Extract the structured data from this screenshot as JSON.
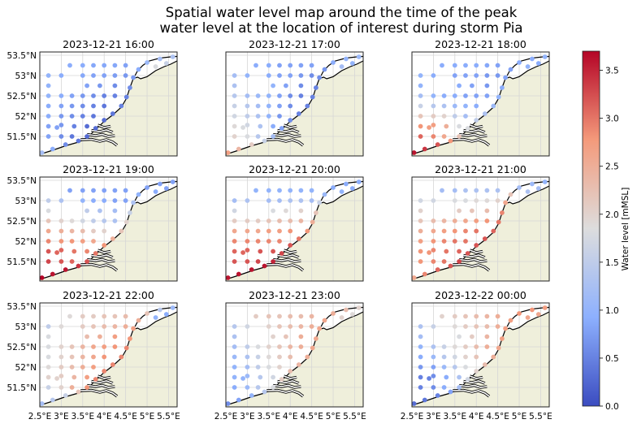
{
  "chart_data": {
    "type": "scatter",
    "title": [
      "Spatial water level map around the time of the peak",
      "water level at the location of interest during storm Pia"
    ],
    "extent": {
      "lon": [
        2.5,
        5.7
      ],
      "lat": [
        51.02,
        53.58
      ]
    },
    "grid": true,
    "land_color": "#efefdb",
    "x_ticks": [
      2.5,
      3,
      3.5,
      4,
      4.5,
      5,
      5.5
    ],
    "x_tick_labels": [
      "2.5°E",
      "3°E",
      "3.5°E",
      "4°E",
      "4.5°E",
      "5°E",
      "5.5°E"
    ],
    "y_ticks": [
      51.5,
      52,
      52.5,
      53,
      53.5
    ],
    "y_tick_labels": [
      "51.5°N",
      "52°N",
      "52.5°N",
      "53°N",
      "53.5°N"
    ],
    "colorbar": {
      "label": "Water level [mMSL]",
      "colormap": "coolwarm",
      "range": [
        0,
        3.7
      ],
      "ticks": [
        0,
        0.5,
        1,
        1.5,
        2,
        2.5,
        3,
        3.5
      ],
      "tick_labels": [
        "0.0",
        "0.5",
        "1.0",
        "1.5",
        "2.0",
        "2.5",
        "3.0",
        "3.5"
      ]
    },
    "stations": [
      [
        3.2,
        53.25
      ],
      [
        3.5,
        53.25
      ],
      [
        3.75,
        53.25
      ],
      [
        4.0,
        53.25
      ],
      [
        4.25,
        53.25
      ],
      [
        4.5,
        53.25
      ],
      [
        2.7,
        53.0
      ],
      [
        3.0,
        53.0
      ],
      [
        3.5,
        53.0
      ],
      [
        3.75,
        53.0
      ],
      [
        4.0,
        53.0
      ],
      [
        4.25,
        53.0
      ],
      [
        4.5,
        53.0
      ],
      [
        2.7,
        52.75
      ],
      [
        3.6,
        52.75
      ],
      [
        3.9,
        52.75
      ],
      [
        4.25,
        52.75
      ],
      [
        2.7,
        52.5
      ],
      [
        3.0,
        52.5
      ],
      [
        3.25,
        52.5
      ],
      [
        3.5,
        52.5
      ],
      [
        3.75,
        52.5
      ],
      [
        4.0,
        52.5
      ],
      [
        4.25,
        52.5
      ],
      [
        2.7,
        52.25
      ],
      [
        3.0,
        52.25
      ],
      [
        3.25,
        52.25
      ],
      [
        3.5,
        52.25
      ],
      [
        3.75,
        52.25
      ],
      [
        4.0,
        52.25
      ],
      [
        2.7,
        52.0
      ],
      [
        3.0,
        52.0
      ],
      [
        3.25,
        52.0
      ],
      [
        3.5,
        52.0
      ],
      [
        3.75,
        52.0
      ],
      [
        2.7,
        51.75
      ],
      [
        2.9,
        51.72
      ],
      [
        3.0,
        51.78
      ],
      [
        3.3,
        51.75
      ],
      [
        3.6,
        51.75
      ],
      [
        2.7,
        51.5
      ],
      [
        3.0,
        51.5
      ],
      [
        3.25,
        51.5
      ],
      [
        2.55,
        51.1
      ],
      [
        2.8,
        51.19
      ],
      [
        3.1,
        51.3
      ],
      [
        3.4,
        51.39
      ],
      [
        3.6,
        51.5
      ],
      [
        3.8,
        51.7
      ],
      [
        4.0,
        51.9
      ],
      [
        4.2,
        52.06
      ],
      [
        4.4,
        52.25
      ],
      [
        4.52,
        52.47
      ],
      [
        4.6,
        52.7
      ],
      [
        4.68,
        52.95
      ],
      [
        4.8,
        53.15
      ],
      [
        5.0,
        53.32
      ],
      [
        5.3,
        53.41
      ],
      [
        5.6,
        53.46
      ],
      [
        5.2,
        53.22
      ],
      [
        5.45,
        53.3
      ]
    ],
    "panels": [
      {
        "title": "2023-12-21 16:00",
        "values": [
          0.9,
          0.9,
          0.85,
          0.85,
          0.85,
          0.8,
          1.0,
          0.9,
          0.85,
          0.8,
          0.8,
          0.75,
          0.7,
          1.0,
          0.8,
          0.7,
          0.6,
          1.0,
          0.9,
          0.8,
          0.7,
          0.6,
          0.5,
          0.5,
          0.9,
          0.8,
          0.7,
          0.6,
          0.5,
          0.4,
          0.9,
          0.7,
          0.6,
          0.5,
          0.4,
          0.8,
          0.8,
          0.7,
          0.5,
          0.3,
          0.8,
          0.6,
          0.4,
          1.2,
          0.9,
          0.6,
          0.4,
          0.3,
          0.3,
          0.3,
          0.4,
          0.5,
          0.5,
          0.6,
          0.7,
          0.9,
          1.1,
          1.2,
          1.3,
          1.8,
          1.6
        ]
      },
      {
        "title": "2023-12-21 17:00",
        "values": [
          0.9,
          0.9,
          0.8,
          0.8,
          0.8,
          0.8,
          1.2,
          1.0,
          0.9,
          0.8,
          0.8,
          0.7,
          0.6,
          1.3,
          1.0,
          0.8,
          0.6,
          1.4,
          1.2,
          1.1,
          1.0,
          0.8,
          0.6,
          0.5,
          1.6,
          1.4,
          1.2,
          1.0,
          0.8,
          0.6,
          1.7,
          1.5,
          1.3,
          1.0,
          0.7,
          1.9,
          1.8,
          1.7,
          1.3,
          0.9,
          2.0,
          1.8,
          1.4,
          2.7,
          2.4,
          2.1,
          1.6,
          1.2,
          0.8,
          0.6,
          0.5,
          0.5,
          0.5,
          0.5,
          0.6,
          0.7,
          0.9,
          1.0,
          1.1,
          1.2,
          1.0
        ]
      },
      {
        "title": "2023-12-21 18:00",
        "values": [
          0.9,
          0.9,
          0.9,
          0.9,
          0.85,
          0.8,
          1.0,
          0.9,
          0.8,
          0.8,
          0.8,
          0.7,
          0.7,
          1.0,
          0.9,
          0.8,
          0.7,
          1.2,
          1.0,
          0.9,
          0.9,
          0.8,
          0.8,
          0.8,
          1.6,
          1.4,
          1.3,
          1.1,
          1.0,
          0.9,
          2.2,
          2.1,
          2.0,
          1.5,
          1.2,
          2.8,
          2.7,
          2.7,
          2.5,
          1.8,
          3.1,
          2.9,
          2.6,
          3.6,
          3.4,
          3.2,
          2.8,
          2.2,
          1.8,
          1.5,
          1.3,
          1.1,
          1.0,
          0.9,
          0.8,
          0.8,
          0.9,
          0.9,
          1.0,
          1.0,
          0.9
        ]
      },
      {
        "title": "2023-12-21 19:00",
        "values": [
          0.8,
          0.8,
          0.8,
          0.8,
          0.8,
          0.8,
          1.5,
          1.3,
          1.0,
          0.9,
          0.9,
          0.8,
          0.8,
          1.8,
          1.5,
          1.3,
          1.2,
          2.2,
          2.0,
          1.9,
          1.7,
          1.5,
          1.4,
          1.3,
          2.6,
          2.5,
          2.4,
          2.3,
          2.1,
          2.0,
          2.9,
          2.8,
          2.8,
          2.7,
          2.6,
          3.2,
          3.1,
          3.1,
          3.0,
          2.9,
          3.3,
          3.2,
          3.1,
          3.7,
          3.6,
          3.6,
          3.4,
          3.2,
          3.0,
          2.8,
          2.5,
          2.2,
          2.0,
          1.6,
          1.3,
          1.0,
          0.8,
          0.8,
          0.8,
          0.9,
          0.8
        ]
      },
      {
        "title": "2023-12-21 20:00",
        "values": [
          1.0,
          1.0,
          1.0,
          1.0,
          1.0,
          1.0,
          1.2,
          1.3,
          1.2,
          1.2,
          1.3,
          1.3,
          1.2,
          1.7,
          1.8,
          1.9,
          2.0,
          2.1,
          2.1,
          2.1,
          2.2,
          2.3,
          2.3,
          2.4,
          2.6,
          2.6,
          2.6,
          2.7,
          2.7,
          2.8,
          2.9,
          2.9,
          2.9,
          2.9,
          2.9,
          3.1,
          3.1,
          3.1,
          3.2,
          3.2,
          3.2,
          3.2,
          3.3,
          3.6,
          3.6,
          3.6,
          3.6,
          3.5,
          3.3,
          3.2,
          3.0,
          2.8,
          2.5,
          2.2,
          1.6,
          1.1,
          0.9,
          0.9,
          0.9,
          1.0,
          0.9
        ]
      },
      {
        "title": "2023-12-21 21:00",
        "values": [
          1.2,
          1.2,
          1.3,
          1.3,
          1.3,
          1.3,
          1.7,
          1.7,
          1.8,
          1.8,
          1.9,
          1.9,
          2.0,
          2.0,
          2.1,
          2.2,
          2.3,
          2.2,
          2.3,
          2.4,
          2.5,
          2.6,
          2.7,
          2.8,
          2.5,
          2.6,
          2.7,
          2.8,
          2.9,
          3.0,
          2.7,
          2.8,
          2.9,
          3.0,
          3.0,
          2.8,
          2.8,
          2.9,
          3.0,
          3.1,
          2.8,
          2.9,
          3.0,
          2.6,
          2.9,
          3.1,
          3.2,
          3.3,
          3.2,
          3.2,
          3.2,
          3.1,
          3.0,
          2.9,
          2.6,
          2.2,
          1.2,
          1.1,
          1.0,
          1.3,
          1.2
        ]
      },
      {
        "title": "2023-12-21 22:00",
        "values": [
          1.9,
          2.1,
          2.1,
          2.2,
          2.2,
          2.3,
          1.5,
          1.9,
          2.1,
          2.2,
          2.3,
          2.4,
          2.5,
          1.8,
          2.3,
          2.5,
          2.7,
          1.8,
          2.0,
          2.2,
          2.4,
          2.6,
          2.7,
          2.8,
          1.8,
          2.0,
          2.2,
          2.4,
          2.6,
          2.8,
          1.9,
          2.1,
          2.3,
          2.5,
          2.7,
          2.0,
          2.0,
          2.1,
          2.4,
          2.7,
          1.6,
          2.0,
          2.5,
          1.2,
          1.4,
          1.6,
          2.2,
          2.8,
          2.9,
          2.9,
          2.9,
          2.9,
          2.9,
          2.8,
          2.7,
          2.5,
          2.2,
          1.4,
          1.1,
          1.0,
          0.9
        ]
      },
      {
        "title": "2023-12-21 23:00",
        "values": [
          2.1,
          2.2,
          2.2,
          2.3,
          2.3,
          2.4,
          1.4,
          1.7,
          2.0,
          2.2,
          2.3,
          2.4,
          2.5,
          1.3,
          2.0,
          2.2,
          2.5,
          1.2,
          1.5,
          1.8,
          2.0,
          2.2,
          2.4,
          2.5,
          1.1,
          1.3,
          1.6,
          1.9,
          2.1,
          2.3,
          1.0,
          1.2,
          1.5,
          1.8,
          2.0,
          1.0,
          1.0,
          1.1,
          1.4,
          1.7,
          0.9,
          1.1,
          1.4,
          0.6,
          0.8,
          1.0,
          1.4,
          1.8,
          2.1,
          2.3,
          2.4,
          2.5,
          2.6,
          2.6,
          2.6,
          2.6,
          2.5,
          2.3,
          2.0,
          2.0,
          1.9
        ]
      },
      {
        "title": "2023-12-22 00:00",
        "values": [
          2.0,
          2.1,
          2.2,
          2.3,
          2.4,
          2.5,
          1.3,
          1.6,
          1.9,
          2.1,
          2.2,
          2.3,
          2.5,
          1.2,
          1.8,
          2.1,
          2.4,
          1.0,
          1.3,
          1.6,
          1.9,
          2.1,
          2.3,
          2.5,
          0.9,
          1.1,
          1.4,
          1.7,
          2.0,
          2.2,
          0.7,
          0.8,
          1.1,
          1.4,
          1.8,
          0.5,
          0.5,
          0.6,
          0.9,
          1.3,
          0.5,
          0.6,
          0.9,
          0.3,
          0.4,
          0.5,
          0.8,
          1.2,
          1.7,
          2.0,
          2.3,
          2.5,
          2.6,
          2.7,
          2.7,
          2.7,
          2.8,
          2.8,
          2.7,
          2.6,
          2.6
        ]
      }
    ]
  }
}
